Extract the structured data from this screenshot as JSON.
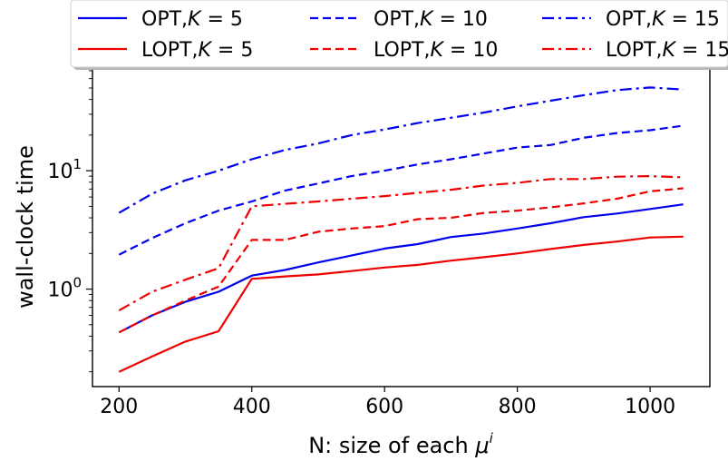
{
  "chart_data": {
    "type": "line",
    "xlabel_text": "N: size of each ",
    "xlabel_symbol": "μ",
    "xlabel_superscript": "i",
    "ylabel": "wall-clock time",
    "xlim": [
      160,
      1090
    ],
    "ylim": [
      0.15,
      75
    ],
    "y_scale": "log",
    "x_ticks": [
      200,
      400,
      600,
      800,
      1000
    ],
    "x_tick_labels": [
      "200",
      "400",
      "600",
      "800",
      "1000"
    ],
    "y_ticks": [
      1,
      10
    ],
    "y_tick_labels": [
      {
        "base": "10",
        "exp": "0"
      },
      {
        "base": "10",
        "exp": "1"
      }
    ],
    "grid": false,
    "legend_placement": "top",
    "legend_columns": 3,
    "x": [
      200,
      250,
      300,
      350,
      400,
      450,
      500,
      550,
      600,
      650,
      700,
      750,
      800,
      850,
      900,
      950,
      1000,
      1050
    ],
    "series": [
      {
        "name_prefix": "OPT,",
        "name_var": "K",
        "name_eq": " = 5",
        "color": "#0000ee",
        "dash": "solid",
        "values": [
          0.43,
          0.6,
          0.78,
          0.95,
          1.3,
          1.45,
          1.68,
          1.92,
          2.2,
          2.4,
          2.75,
          2.95,
          3.25,
          3.6,
          4.05,
          4.35,
          4.75,
          5.2
        ]
      },
      {
        "name_prefix": "LOPT,",
        "name_var": "K",
        "name_eq": " = 5",
        "color": "#ee0000",
        "dash": "solid",
        "values": [
          0.2,
          0.27,
          0.36,
          0.44,
          1.22,
          1.28,
          1.33,
          1.42,
          1.52,
          1.6,
          1.74,
          1.86,
          2.0,
          2.18,
          2.36,
          2.52,
          2.73,
          2.77
        ]
      },
      {
        "name_prefix": "OPT,",
        "name_var": "K",
        "name_eq": " = 10",
        "color": "#0000ee",
        "dash": "dashed",
        "values": [
          1.95,
          2.7,
          3.6,
          4.6,
          5.5,
          6.8,
          7.8,
          9.0,
          10.0,
          11.3,
          12.5,
          14.0,
          15.7,
          16.5,
          19.0,
          20.8,
          22.0,
          24.0
        ]
      },
      {
        "name_prefix": "LOPT,",
        "name_var": "K",
        "name_eq": " = 10",
        "color": "#ee0000",
        "dash": "dashed",
        "values": [
          0.43,
          0.6,
          0.8,
          1.05,
          2.6,
          2.6,
          3.05,
          3.25,
          3.4,
          3.9,
          4.0,
          4.4,
          4.6,
          4.9,
          5.3,
          5.8,
          6.7,
          7.1
        ]
      },
      {
        "name_prefix": "OPT,",
        "name_var": "K",
        "name_eq": " = 15",
        "color": "#0000ee",
        "dash": "dashdot",
        "values": [
          4.4,
          6.4,
          8.3,
          10.0,
          12.5,
          15.0,
          17.0,
          20.0,
          22.3,
          25.3,
          28.0,
          31.0,
          35.0,
          39.0,
          43.5,
          48.0,
          50.5,
          48.5
        ]
      },
      {
        "name_prefix": "LOPT,",
        "name_var": "K",
        "name_eq": " = 15",
        "color": "#ee0000",
        "dash": "dashdot",
        "values": [
          0.66,
          0.95,
          1.2,
          1.5,
          5.0,
          5.25,
          5.5,
          5.8,
          6.1,
          6.5,
          6.9,
          7.5,
          7.9,
          8.5,
          8.5,
          8.9,
          9.0,
          8.8
        ]
      }
    ]
  }
}
